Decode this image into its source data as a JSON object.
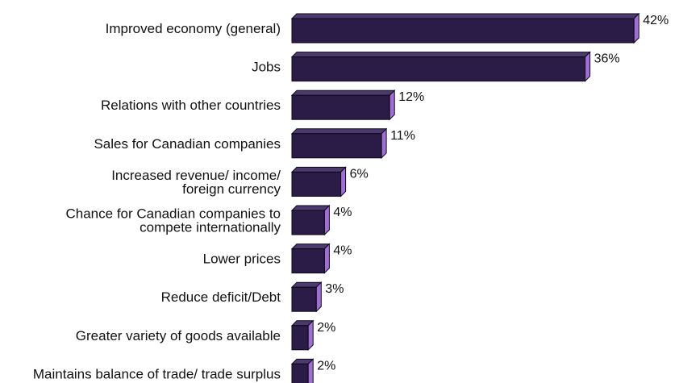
{
  "chart_data": {
    "type": "bar",
    "orientation": "horizontal",
    "categories": [
      [
        "Improved economy (general)"
      ],
      [
        "Jobs"
      ],
      [
        "Relations with other countries"
      ],
      [
        "Sales for Canadian companies"
      ],
      [
        "Increased revenue/ income/",
        "foreign currency"
      ],
      [
        "Chance for Canadian companies to",
        "compete internationally"
      ],
      [
        "Lower prices"
      ],
      [
        "Reduce deficit/Debt"
      ],
      [
        "Greater variety of goods available"
      ],
      [
        "Maintains balance of trade/ trade surplus"
      ]
    ],
    "values": [
      42,
      36,
      12,
      11,
      6,
      4,
      4,
      3,
      2,
      2
    ],
    "value_labels": [
      "42%",
      "36%",
      "12%",
      "11%",
      "6%",
      "4%",
      "4%",
      "3%",
      "2%",
      "2%"
    ],
    "colors": {
      "bar_front": "#2a1c47",
      "bar_top": "#4a3a6e",
      "bar_side": "#9f6fd4",
      "bar_edge": "#0c0716"
    },
    "grid": false,
    "legend": "none"
  }
}
